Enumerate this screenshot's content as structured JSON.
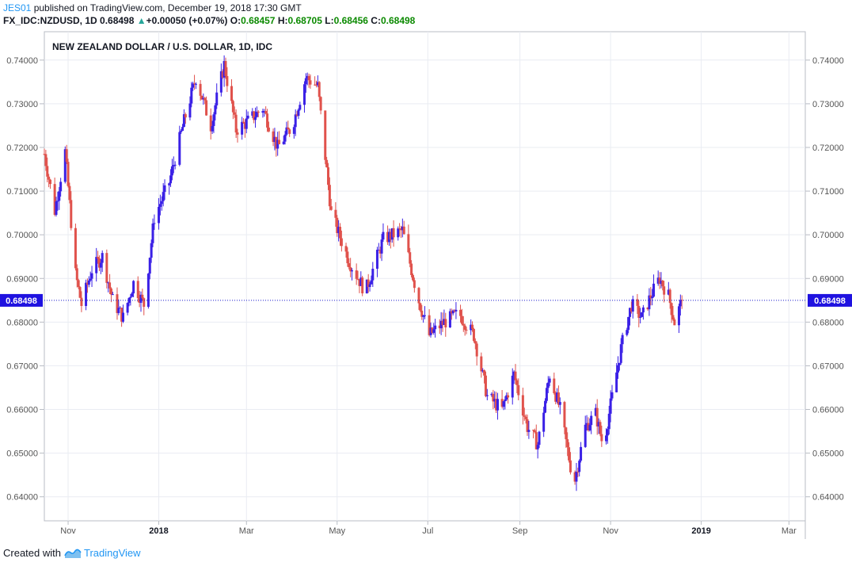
{
  "header": {
    "line1_user": "JES01",
    "line1_rest": " published on TradingView.com, December 19, 2018 17:30 GMT",
    "symbol": "FX_IDC:NZDUSD, 1D",
    "last": "0.68498",
    "arrow": "▲",
    "change": "+0.00050 (+0.07%)",
    "o_label": "O:",
    "o": "0.68457",
    "h_label": "H:",
    "h": "0.68705",
    "l_label": "L:",
    "l": "0.68456",
    "c_label": "C:",
    "c": "0.68498"
  },
  "footer": {
    "created_with": "Created with",
    "brand": "TradingView"
  },
  "colors": {
    "up": "#3a20e6",
    "down": "#e0524c",
    "grid": "#e9ecf2",
    "price_line": "#1a1acc",
    "axis": "#555555"
  },
  "chart_data": {
    "type": "candlestick",
    "title": "NEW ZEALAND DOLLAR / U.S. DOLLAR, 1D, IDC",
    "x_start": "2017-10-16",
    "x_end": "2019-03-12",
    "ylim": [
      0.6345,
      0.7465
    ],
    "y_ticks": [
      "0.74000",
      "0.73000",
      "0.72000",
      "0.71000",
      "0.70000",
      "0.69000",
      "0.68000",
      "0.67000",
      "0.66000",
      "0.65000",
      "0.64000"
    ],
    "y_tick_values": [
      0.74,
      0.73,
      0.72,
      0.71,
      0.7,
      0.69,
      0.68,
      0.67,
      0.66,
      0.65,
      0.64
    ],
    "x_ticks": [
      {
        "label": "Nov",
        "date": "2017-11-01"
      },
      {
        "label": "2018",
        "date": "2018-01-01"
      },
      {
        "label": "Mar",
        "date": "2018-03-01"
      },
      {
        "label": "May",
        "date": "2018-05-01"
      },
      {
        "label": "Jul",
        "date": "2018-07-01"
      },
      {
        "label": "Sep",
        "date": "2018-09-01"
      },
      {
        "label": "Nov",
        "date": "2018-11-01"
      },
      {
        "label": "2019",
        "date": "2019-01-01"
      },
      {
        "label": "Mar",
        "date": "2019-03-01"
      }
    ],
    "last_price": 0.68498,
    "last_price_label": "0.68498",
    "grid": true,
    "candle_closes": [
      {
        "date": "2017-10-16",
        "close": 0.7185
      },
      {
        "date": "2017-10-23",
        "close": 0.7055
      },
      {
        "date": "2017-10-30",
        "close": 0.719
      },
      {
        "date": "2017-11-06",
        "close": 0.691
      },
      {
        "date": "2017-11-10",
        "close": 0.684
      },
      {
        "date": "2017-11-17",
        "close": 0.692
      },
      {
        "date": "2017-11-24",
        "close": 0.695
      },
      {
        "date": "2017-12-01",
        "close": 0.685
      },
      {
        "date": "2017-12-08",
        "close": 0.681
      },
      {
        "date": "2017-12-15",
        "close": 0.689
      },
      {
        "date": "2017-12-22",
        "close": 0.684
      },
      {
        "date": "2017-12-29",
        "close": 0.704
      },
      {
        "date": "2018-01-08",
        "close": 0.712
      },
      {
        "date": "2018-01-18",
        "close": 0.726
      },
      {
        "date": "2018-01-26",
        "close": 0.736
      },
      {
        "date": "2018-02-05",
        "close": 0.725
      },
      {
        "date": "2018-02-14",
        "close": 0.739
      },
      {
        "date": "2018-02-22",
        "close": 0.724
      },
      {
        "date": "2018-03-02",
        "close": 0.726
      },
      {
        "date": "2018-03-12",
        "close": 0.729
      },
      {
        "date": "2018-03-22",
        "close": 0.72
      },
      {
        "date": "2018-04-01",
        "close": 0.725
      },
      {
        "date": "2018-04-10",
        "close": 0.736
      },
      {
        "date": "2018-04-18",
        "close": 0.734
      },
      {
        "date": "2018-04-27",
        "close": 0.705
      },
      {
        "date": "2018-05-09",
        "close": 0.694
      },
      {
        "date": "2018-05-20",
        "close": 0.687
      },
      {
        "date": "2018-06-01",
        "close": 0.699
      },
      {
        "date": "2018-06-14",
        "close": 0.701
      },
      {
        "date": "2018-06-24",
        "close": 0.686
      },
      {
        "date": "2018-07-02",
        "close": 0.677
      },
      {
        "date": "2018-07-12",
        "close": 0.68
      },
      {
        "date": "2018-07-22",
        "close": 0.682
      },
      {
        "date": "2018-08-01",
        "close": 0.677
      },
      {
        "date": "2018-08-10",
        "close": 0.663
      },
      {
        "date": "2018-08-20",
        "close": 0.66
      },
      {
        "date": "2018-08-28",
        "close": 0.668
      },
      {
        "date": "2018-09-06",
        "close": 0.656
      },
      {
        "date": "2018-09-13",
        "close": 0.652
      },
      {
        "date": "2018-09-21",
        "close": 0.668
      },
      {
        "date": "2018-09-28",
        "close": 0.66
      },
      {
        "date": "2018-10-05",
        "close": 0.647
      },
      {
        "date": "2018-10-08",
        "close": 0.644
      },
      {
        "date": "2018-10-15",
        "close": 0.656
      },
      {
        "date": "2018-10-22",
        "close": 0.659
      },
      {
        "date": "2018-10-27",
        "close": 0.6515
      },
      {
        "date": "2018-11-01",
        "close": 0.661
      },
      {
        "date": "2018-11-08",
        "close": 0.674
      },
      {
        "date": "2018-11-15",
        "close": 0.684
      },
      {
        "date": "2018-11-22",
        "close": 0.681
      },
      {
        "date": "2018-11-28",
        "close": 0.686
      },
      {
        "date": "2018-12-04",
        "close": 0.69
      },
      {
        "date": "2018-12-10",
        "close": 0.686
      },
      {
        "date": "2018-12-14",
        "close": 0.68
      },
      {
        "date": "2018-12-19",
        "close": 0.685
      }
    ]
  }
}
